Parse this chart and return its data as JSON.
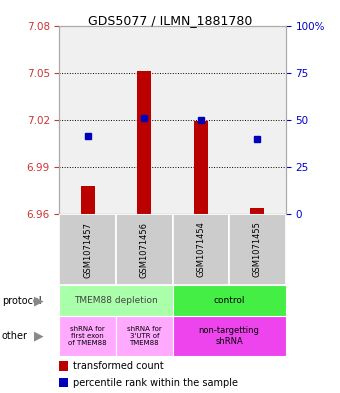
{
  "title": "GDS5077 / ILMN_1881780",
  "samples": [
    "GSM1071457",
    "GSM1071456",
    "GSM1071454",
    "GSM1071455"
  ],
  "bar_tops": [
    6.978,
    7.051,
    7.019,
    6.964
  ],
  "bar_bottoms": [
    6.96,
    6.96,
    6.96,
    6.96
  ],
  "percentile_values": [
    7.01,
    7.021,
    7.02,
    7.008
  ],
  "ylim": [
    6.96,
    7.08
  ],
  "yticks_left": [
    7.08,
    7.05,
    7.02,
    6.99,
    6.96
  ],
  "yticks_right_pct": [
    100,
    75,
    50,
    25,
    0
  ],
  "bar_color": "#bb0000",
  "percentile_color": "#0000bb",
  "plot_bg": "#f0f0f0",
  "plot_border": "#cccccc",
  "sample_box_color": "#cccccc",
  "protocol_colors": [
    "#aaffaa",
    "#44ee44"
  ],
  "other_colors_left": "#ffaaff",
  "other_colors_right": "#ee44ee",
  "background_color": "#ffffff",
  "bar_width": 0.25,
  "marker_size": 5
}
